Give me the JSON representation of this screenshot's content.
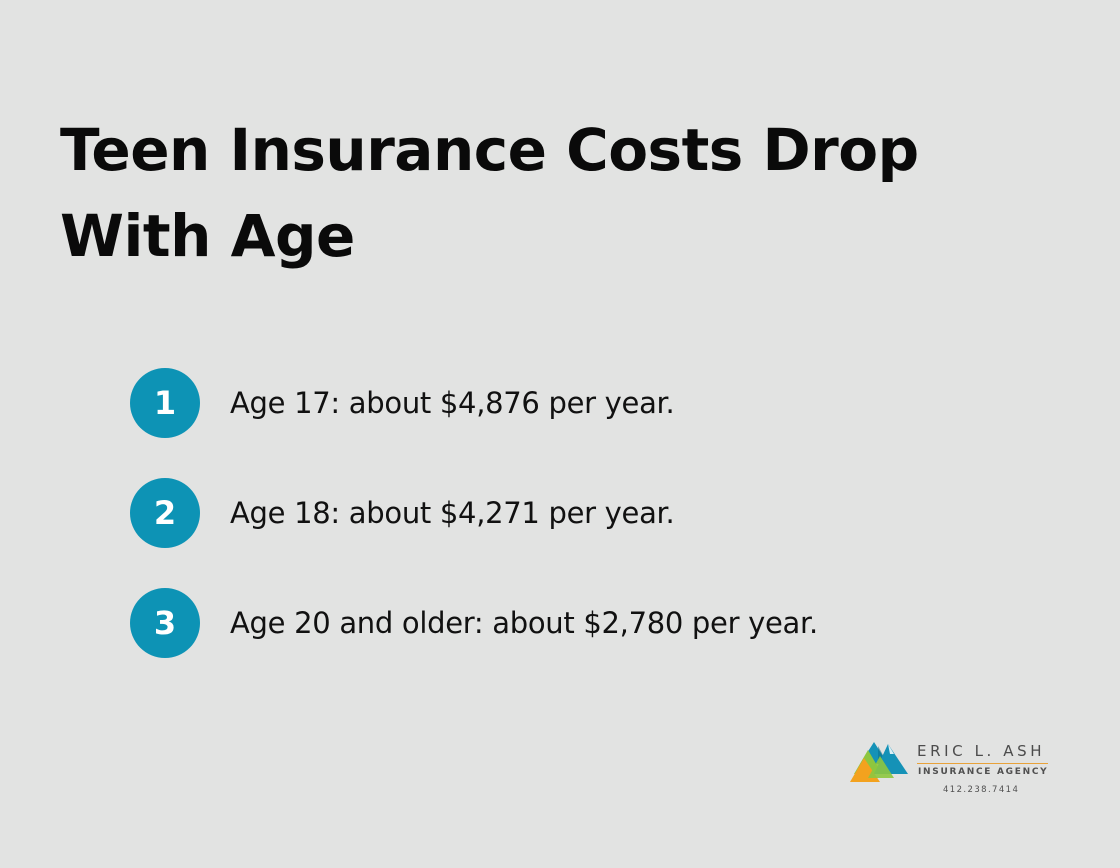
{
  "title": {
    "line1": "Teen Insurance Costs Drop",
    "line2": "With Age"
  },
  "items": [
    {
      "number": "1",
      "text": "Age 17: about $4,876 per year."
    },
    {
      "number": "2",
      "text": "Age 18: about $4,271 per year."
    },
    {
      "number": "3",
      "text": "Age 20 and older: about $2,780 per year."
    }
  ],
  "logo": {
    "name": "ERIC L. ASH",
    "subtitle": "INSURANCE AGENCY",
    "phone": "412.238.7414",
    "icon": "mountain-peaks-logo-icon"
  },
  "colors": {
    "background": "#e2e3e2",
    "badge": "#0d93b5",
    "title_text": "#0a0a0a",
    "logo_orange": "#f3a21e",
    "logo_green": "#8dc63f",
    "logo_blue": "#1592b7"
  }
}
